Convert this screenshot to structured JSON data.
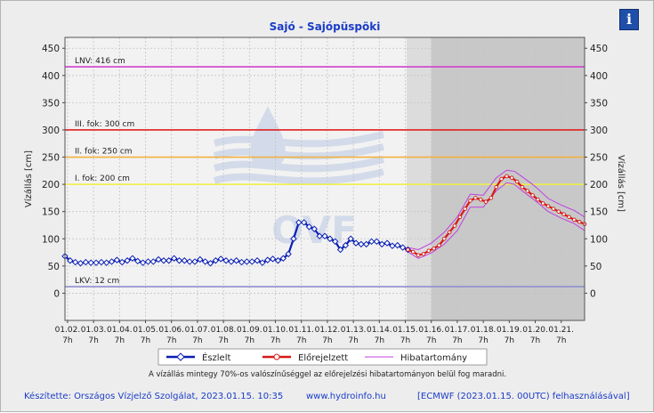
{
  "chart_data": {
    "type": "line",
    "title": "Sajó - Sajópüspöki",
    "ylabel_left": "Vízállás [cm]",
    "ylabel_right": "Vízállás [cm]",
    "ylim": [
      -50,
      470
    ],
    "y_ticks": [
      0,
      50,
      100,
      150,
      200,
      250,
      300,
      350,
      400,
      450
    ],
    "x_tick_dates": [
      "01.02.",
      "01.03.",
      "01.04.",
      "01.05.",
      "01.06.",
      "01.07.",
      "01.08.",
      "01.09.",
      "01.10.",
      "01.11.",
      "01.12.",
      "01.13.",
      "01.14.",
      "01.15.",
      "01.16.",
      "01.17.",
      "01.18.",
      "01.19.",
      "01.20.",
      "01.21."
    ],
    "x_tick_hour": "7h",
    "xlim_days": [
      0.9,
      20.9
    ],
    "grid": true,
    "reference_lines": [
      {
        "label": "LNV: 416 cm",
        "value": 416,
        "color": "#d040d0"
      },
      {
        "label": "III. fok: 300 cm",
        "value": 300,
        "color": "#e02020"
      },
      {
        "label": "II. fok: 250 cm",
        "value": 250,
        "color": "#f0b040"
      },
      {
        "label": "I. fok: 200 cm",
        "value": 200,
        "color": "#f0f040"
      },
      {
        "label": "LKV: 12 cm",
        "value": 12,
        "color": "#9090d0"
      }
    ],
    "forecast_start_day": 14.0,
    "forecast_region_start_day": 15.0,
    "series": [
      {
        "name": "Észlelt",
        "color": "#0a1fb4",
        "x": [
          0.9,
          1.1,
          1.3,
          1.5,
          1.7,
          1.9,
          2.1,
          2.3,
          2.5,
          2.7,
          2.9,
          3.1,
          3.3,
          3.5,
          3.7,
          3.9,
          4.1,
          4.3,
          4.5,
          4.7,
          4.9,
          5.1,
          5.3,
          5.5,
          5.7,
          5.9,
          6.1,
          6.3,
          6.5,
          6.7,
          6.9,
          7.1,
          7.3,
          7.5,
          7.7,
          7.9,
          8.1,
          8.3,
          8.5,
          8.7,
          8.9,
          9.1,
          9.3,
          9.5,
          9.7,
          9.9,
          10.1,
          10.3,
          10.5,
          10.7,
          10.9,
          11.1,
          11.3,
          11.5,
          11.7,
          11.9,
          12.1,
          12.3,
          12.5,
          12.7,
          12.9,
          13.1,
          13.3,
          13.5,
          13.7,
          13.9,
          14.1
        ],
        "values": [
          68,
          60,
          57,
          55,
          57,
          56,
          56,
          57,
          56,
          58,
          61,
          57,
          60,
          64,
          59,
          56,
          58,
          58,
          62,
          60,
          60,
          64,
          60,
          60,
          58,
          58,
          62,
          58,
          55,
          60,
          63,
          60,
          58,
          60,
          57,
          58,
          58,
          60,
          56,
          61,
          63,
          60,
          64,
          72,
          100,
          130,
          130,
          122,
          118,
          105,
          105,
          100,
          95,
          80,
          88,
          100,
          92,
          90,
          90,
          95,
          95,
          90,
          92,
          87,
          88,
          84,
          80
        ]
      },
      {
        "name": "Előrejelzett",
        "color": "#d81818",
        "x": [
          14.1,
          14.3,
          14.5,
          14.7,
          14.9,
          15.1,
          15.3,
          15.5,
          15.7,
          15.9,
          16.1,
          16.3,
          16.5,
          16.7,
          16.9,
          17.1,
          17.3,
          17.5,
          17.7,
          17.9,
          18.1,
          18.3,
          18.5,
          18.7,
          18.9,
          19.1,
          19.3,
          19.5,
          19.7,
          19.9,
          20.1,
          20.3,
          20.5,
          20.7,
          20.9
        ],
        "values": [
          80,
          76,
          70,
          72,
          78,
          82,
          88,
          100,
          112,
          124,
          140,
          155,
          170,
          175,
          172,
          168,
          175,
          195,
          210,
          215,
          212,
          205,
          195,
          188,
          180,
          172,
          165,
          160,
          155,
          150,
          145,
          140,
          135,
          131,
          127
        ]
      }
    ],
    "error_band": {
      "name": "Hibatartomány",
      "color": "#c040e0",
      "x": [
        14.1,
        14.5,
        15.0,
        15.5,
        16.0,
        16.5,
        17.0,
        17.5,
        17.9,
        18.2,
        18.5,
        19.0,
        19.5,
        20.0,
        20.5,
        20.9
      ],
      "upper": [
        84,
        80,
        92,
        112,
        140,
        182,
        180,
        212,
        226,
        224,
        214,
        196,
        174,
        162,
        152,
        140
      ],
      "lower": [
        76,
        64,
        74,
        90,
        115,
        158,
        158,
        188,
        203,
        200,
        188,
        170,
        150,
        138,
        128,
        115
      ]
    }
  },
  "logo_text": "OVF",
  "info_icon": "i",
  "legend": [
    {
      "label": "Észlelt",
      "color": "#0a1fb4",
      "marker": "diamond"
    },
    {
      "label": "Előrejelzett",
      "color": "#d81818",
      "marker": "circle"
    },
    {
      "label": "Hibatartomány",
      "color": "#c040e0",
      "marker": "none"
    }
  ],
  "note": "A vízállás mintegy 70%-os valószínűséggel az előrejelzési hibatartományon belül fog maradni.",
  "footer": {
    "author": "Készítette: Országos Vízjelző Szolgálat, 2023.01.15. 10:35",
    "website": "www.hydroinfo.hu",
    "model": "[ECMWF (2023.01.15. 00UTC) felhasználásával]"
  }
}
